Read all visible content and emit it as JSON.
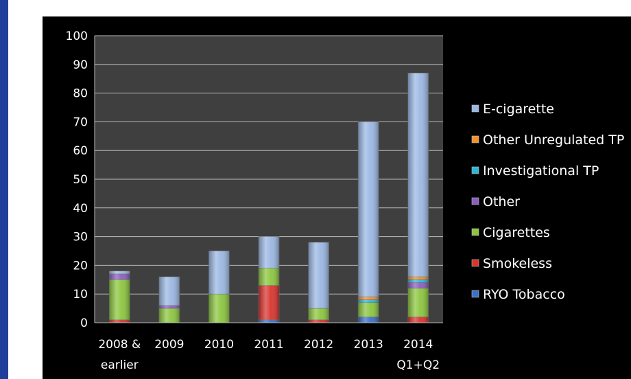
{
  "chart_data": {
    "type": "bar",
    "stacked": true,
    "categories": [
      "2008 & earlier",
      "2009",
      "2010",
      "2011",
      "2012",
      "2013",
      "2014 Q1+Q2"
    ],
    "category_label_lines": [
      [
        "2008 &",
        "earlier"
      ],
      [
        "2009"
      ],
      [
        "2010"
      ],
      [
        "2011"
      ],
      [
        "2012"
      ],
      [
        "2013"
      ],
      [
        "2014",
        "Q1+Q2"
      ]
    ],
    "ylim": [
      0,
      100
    ],
    "yticks": [
      0,
      10,
      20,
      30,
      40,
      50,
      60,
      70,
      80,
      90,
      100
    ],
    "grid": true,
    "legend_position": "right",
    "series": [
      {
        "name": "RYO Tobacco",
        "color": "#3c6fc8",
        "values": [
          0,
          0,
          0,
          1,
          0,
          2,
          0
        ]
      },
      {
        "name": "Smokeless",
        "color": "#d9342e",
        "values": [
          1,
          0,
          0,
          12,
          1,
          0,
          2
        ]
      },
      {
        "name": "Cigarettes",
        "color": "#8cc63f",
        "values": [
          14,
          5,
          10,
          6,
          4,
          5,
          10
        ]
      },
      {
        "name": "Other",
        "color": "#8a5fc0",
        "values": [
          2,
          1,
          0,
          0,
          0,
          0,
          2
        ]
      },
      {
        "name": "Investigational TP",
        "color": "#2fb6d6",
        "values": [
          0,
          0,
          0,
          0,
          0,
          1,
          1
        ]
      },
      {
        "name": "Other Unregulated TP",
        "color": "#f0932b",
        "values": [
          0,
          0,
          0,
          0,
          0,
          1,
          1
        ]
      },
      {
        "name": "E-cigarette",
        "color": "#9bb7e2",
        "values": [
          1,
          10,
          15,
          11,
          23,
          61,
          71
        ]
      }
    ]
  }
}
